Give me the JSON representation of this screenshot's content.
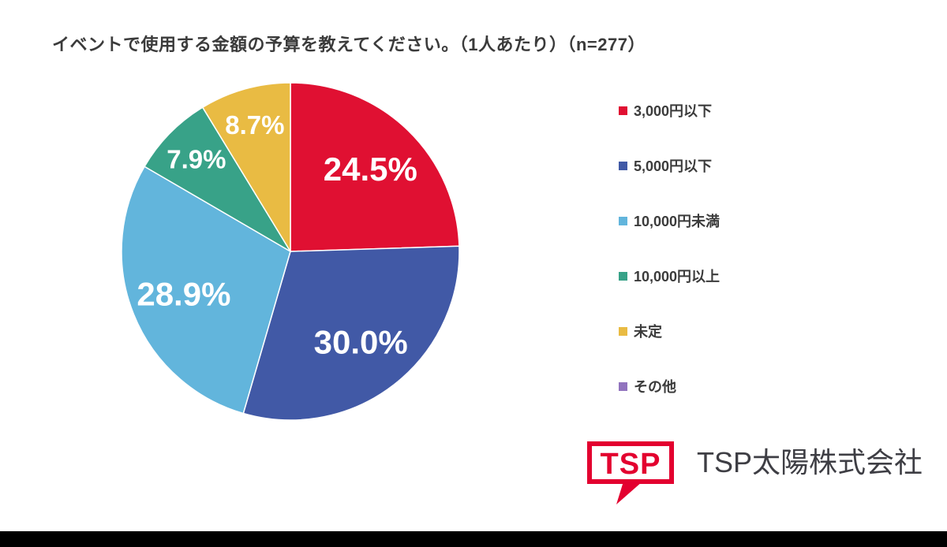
{
  "title": "イベントで使用する金額の予算を教えてください。（1人あたり）（n=277）",
  "chart_data": {
    "type": "pie",
    "title": "イベントで使用する金額の予算を教えてください。（1人あたり）",
    "sample_size": 277,
    "categories": [
      "3,000円以下",
      "5,000円以下",
      "10,000円未満",
      "10,000円以上",
      "未定",
      "その他"
    ],
    "values": [
      24.5,
      30.0,
      28.9,
      7.9,
      8.7,
      0
    ],
    "labels": [
      "24.5%",
      "30.0%",
      "28.9%",
      "7.9%",
      "8.7%",
      ""
    ],
    "colors": [
      "#E01032",
      "#4159A6",
      "#62B5DC",
      "#38A288",
      "#E9BB43",
      "#9173BE"
    ],
    "start_angle": "top",
    "direction": "clockwise",
    "legend_position": "right"
  },
  "legend": {
    "items": [
      {
        "label": "3,000円以下",
        "color": "#E01032"
      },
      {
        "label": "5,000円以下",
        "color": "#4159A6"
      },
      {
        "label": "10,000円未満",
        "color": "#62B5DC"
      },
      {
        "label": "10,000円以上",
        "color": "#38A288"
      },
      {
        "label": "未定",
        "color": "#E9BB43"
      },
      {
        "label": "その他",
        "color": "#9173BE"
      }
    ]
  },
  "footer": {
    "logo_text": "TSP",
    "logo_color": "#E3002F",
    "company_name": "TSP太陽株式会社"
  }
}
